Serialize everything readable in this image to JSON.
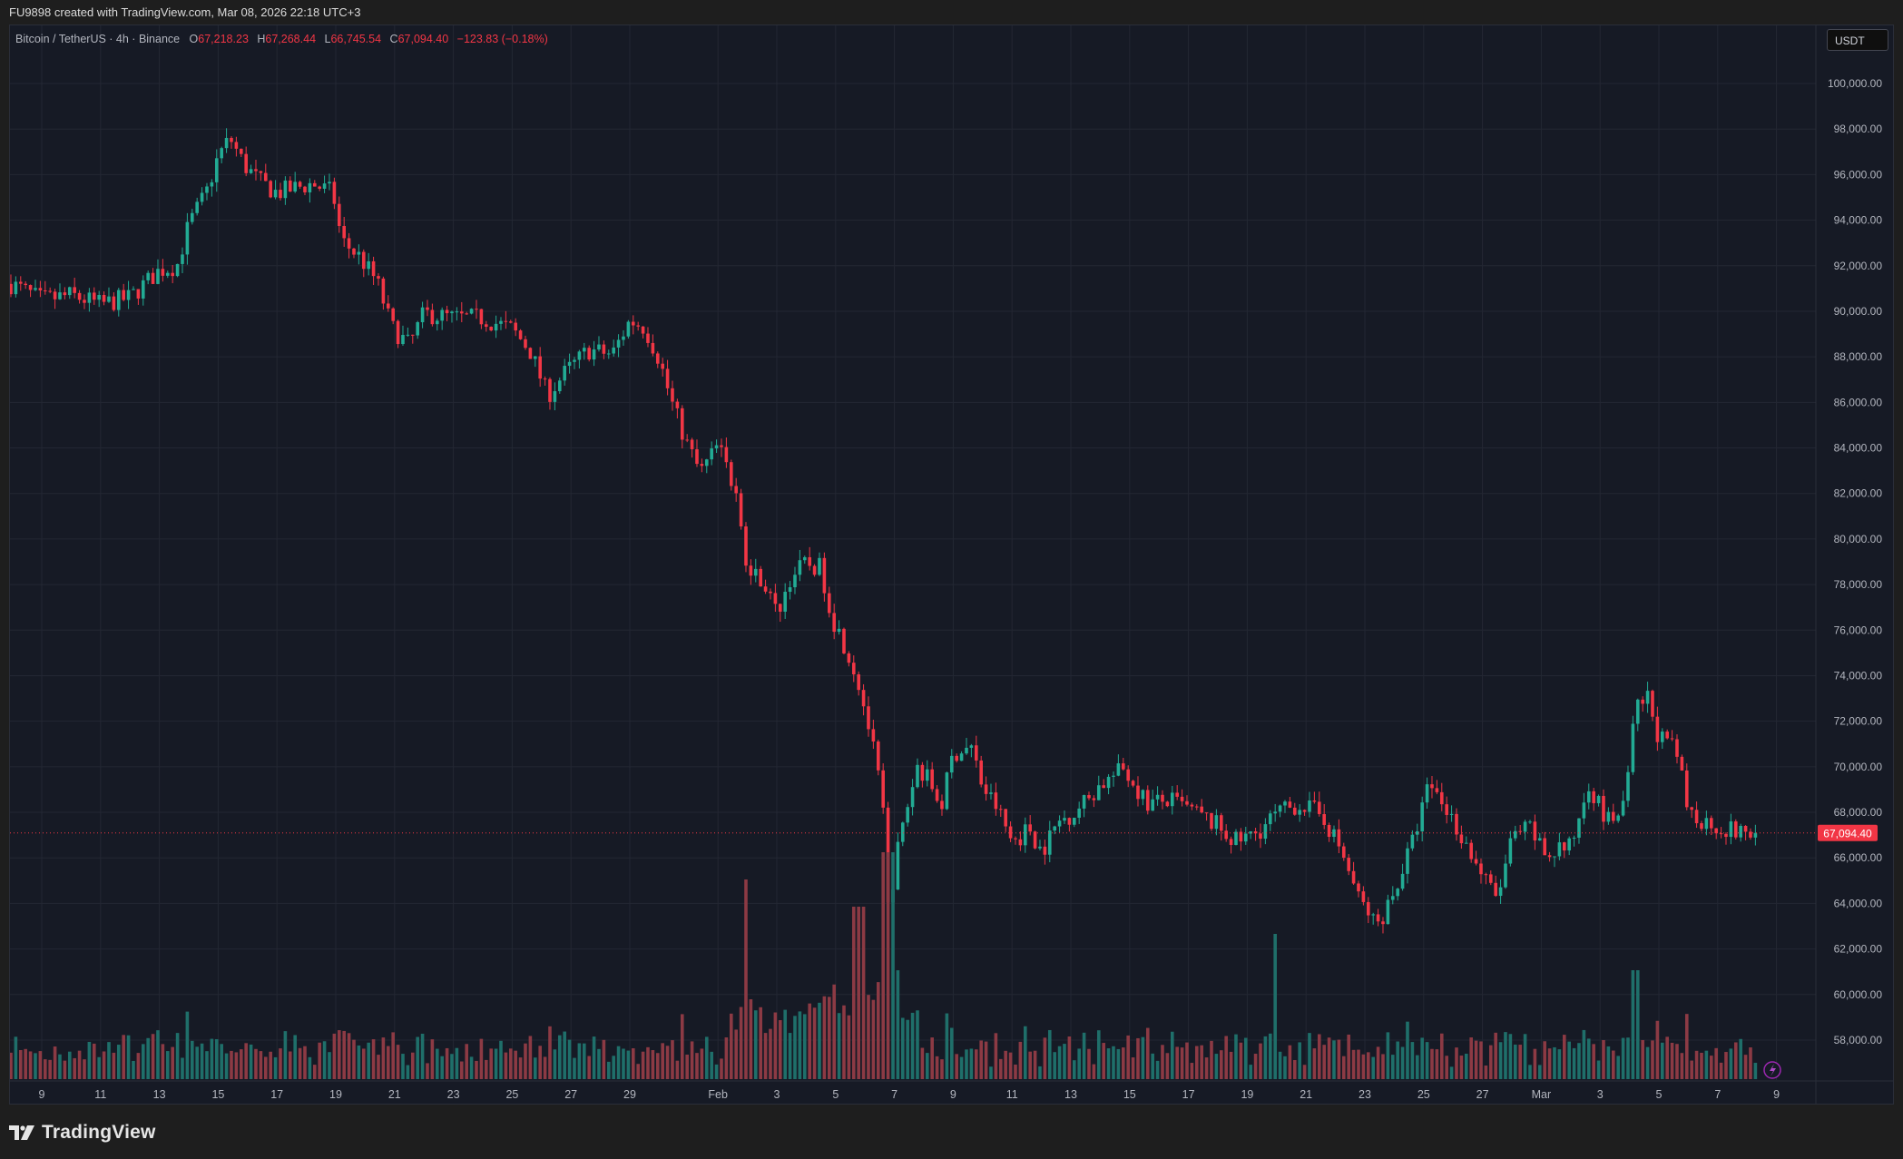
{
  "header": {
    "caption": "FU9898 created with TradingView.com, Mar 08, 2026 22:18 UTC+3"
  },
  "legend": {
    "symbol": "Bitcoin / TetherUS · 4h · Binance",
    "o_label": "O",
    "o_value": "67,218.23",
    "h_label": "H",
    "h_value": "67,268.44",
    "l_label": "L",
    "l_value": "66,745.54",
    "c_label": "C",
    "c_value": "67,094.40",
    "change": "−123.83 (−0.18%)"
  },
  "currency_button": {
    "label": "USDT"
  },
  "footer": {
    "brand": "TradingView"
  },
  "colors": {
    "up": "#22ab94",
    "down": "#f23645",
    "vol_up": "#1f6f6a",
    "vol_down": "#8c3a44",
    "grid": "#232733",
    "last_price_bg": "#f23645"
  },
  "icons": {
    "brand_logo": "tradingview-logo-icon",
    "lightning": "lightning-icon"
  },
  "chart_data": {
    "type": "candlestick",
    "ylim": [
      56000,
      101000
    ],
    "y_ticks": [
      "58,000.00",
      "60,000.00",
      "62,000.00",
      "64,000.00",
      "66,000.00",
      "68,000.00",
      "70,000.00",
      "72,000.00",
      "74,000.00",
      "76,000.00",
      "78,000.00",
      "80,000.00",
      "82,000.00",
      "84,000.00",
      "86,000.00",
      "88,000.00",
      "90,000.00",
      "92,000.00",
      "94,000.00",
      "96,000.00",
      "98,000.00",
      "100,000.00"
    ],
    "y_tick_values": [
      58000,
      60000,
      62000,
      64000,
      66000,
      68000,
      70000,
      72000,
      74000,
      76000,
      78000,
      80000,
      82000,
      84000,
      86000,
      88000,
      90000,
      92000,
      94000,
      96000,
      98000,
      100000
    ],
    "x_ticks": [
      "9",
      "11",
      "13",
      "15",
      "17",
      "19",
      "21",
      "23",
      "25",
      "27",
      "29",
      "Feb",
      "3",
      "5",
      "7",
      "9",
      "11",
      "13",
      "15",
      "17",
      "19",
      "21",
      "23",
      "25",
      "27",
      "Mar",
      "3",
      "5",
      "7",
      "9"
    ],
    "x_tick_days": [
      0,
      2,
      4,
      6,
      8,
      10,
      12,
      14,
      16,
      18,
      20,
      23,
      25,
      27,
      29,
      31,
      33,
      35,
      37,
      39,
      41,
      43,
      45,
      47,
      49,
      51,
      53,
      55,
      57,
      59
    ],
    "x_start_offset_days": -1.05,
    "last_price": 67094.4,
    "last_price_label": "67,094.40",
    "close_path": [
      [
        -1.05,
        91200
      ],
      [
        0.0,
        90500
      ],
      [
        1.0,
        90700
      ],
      [
        2.0,
        90300
      ],
      [
        3.0,
        90600
      ],
      [
        4.0,
        91800
      ],
      [
        4.6,
        92000
      ],
      [
        5.0,
        93800
      ],
      [
        5.6,
        95200
      ],
      [
        6.0,
        96800
      ],
      [
        6.4,
        97600
      ],
      [
        6.9,
        96400
      ],
      [
        7.4,
        95700
      ],
      [
        8.0,
        95200
      ],
      [
        8.6,
        95400
      ],
      [
        9.2,
        95600
      ],
      [
        9.9,
        95200
      ],
      [
        10.2,
        93100
      ],
      [
        10.8,
        92400
      ],
      [
        11.4,
        91300
      ],
      [
        11.9,
        89300
      ],
      [
        12.5,
        88500
      ],
      [
        13.0,
        89900
      ],
      [
        14.0,
        89700
      ],
      [
        15.0,
        89700
      ],
      [
        16.0,
        89200
      ],
      [
        16.6,
        88300
      ],
      [
        17.2,
        86300
      ],
      [
        17.8,
        87300
      ],
      [
        18.6,
        88300
      ],
      [
        19.4,
        88100
      ],
      [
        20.0,
        89600
      ],
      [
        20.5,
        89300
      ],
      [
        21.0,
        87900
      ],
      [
        21.4,
        86100
      ],
      [
        21.9,
        84300
      ],
      [
        22.4,
        82900
      ],
      [
        23.0,
        84100
      ],
      [
        23.6,
        82100
      ],
      [
        24.0,
        78500
      ],
      [
        24.5,
        78300
      ],
      [
        25.0,
        76700
      ],
      [
        25.5,
        78400
      ],
      [
        26.0,
        78900
      ],
      [
        26.5,
        78700
      ],
      [
        26.9,
        76500
      ],
      [
        27.4,
        75100
      ],
      [
        27.8,
        73600
      ],
      [
        28.2,
        71300
      ],
      [
        28.6,
        68400
      ],
      [
        28.8,
        63400
      ],
      [
        29.0,
        65600
      ],
      [
        29.4,
        68100
      ],
      [
        29.8,
        70100
      ],
      [
        30.2,
        69300
      ],
      [
        30.6,
        68300
      ],
      [
        31.0,
        70600
      ],
      [
        31.6,
        70900
      ],
      [
        32.0,
        69100
      ],
      [
        32.5,
        68200
      ],
      [
        33.0,
        66700
      ],
      [
        33.6,
        67300
      ],
      [
        34.0,
        66300
      ],
      [
        34.6,
        67600
      ],
      [
        35.2,
        68100
      ],
      [
        36.0,
        69200
      ],
      [
        36.8,
        69900
      ],
      [
        37.6,
        68400
      ],
      [
        38.4,
        68500
      ],
      [
        39.2,
        68000
      ],
      [
        40.0,
        67400
      ],
      [
        40.6,
        66700
      ],
      [
        41.2,
        67000
      ],
      [
        42.0,
        67900
      ],
      [
        42.8,
        68400
      ],
      [
        43.6,
        67800
      ],
      [
        44.2,
        66300
      ],
      [
        44.8,
        64200
      ],
      [
        45.4,
        63000
      ],
      [
        46.0,
        64500
      ],
      [
        46.6,
        66600
      ],
      [
        47.2,
        69300
      ],
      [
        47.8,
        68100
      ],
      [
        48.4,
        66700
      ],
      [
        49.0,
        65200
      ],
      [
        49.5,
        64200
      ],
      [
        50.0,
        66800
      ],
      [
        50.6,
        67300
      ],
      [
        51.2,
        66000
      ],
      [
        51.6,
        66500
      ],
      [
        52.0,
        66400
      ],
      [
        52.6,
        69400
      ],
      [
        53.2,
        67600
      ],
      [
        53.8,
        68100
      ],
      [
        54.2,
        72400
      ],
      [
        54.6,
        73100
      ],
      [
        55.0,
        71300
      ],
      [
        55.6,
        70600
      ],
      [
        56.0,
        68000
      ],
      [
        56.6,
        67600
      ],
      [
        57.2,
        67300
      ],
      [
        57.8,
        67100
      ],
      [
        58.3,
        67094
      ]
    ],
    "volume_note": "volume histogram at bottom; spikes near Feb 2, Feb 5-6, Feb 20, Mar 3-5"
  }
}
